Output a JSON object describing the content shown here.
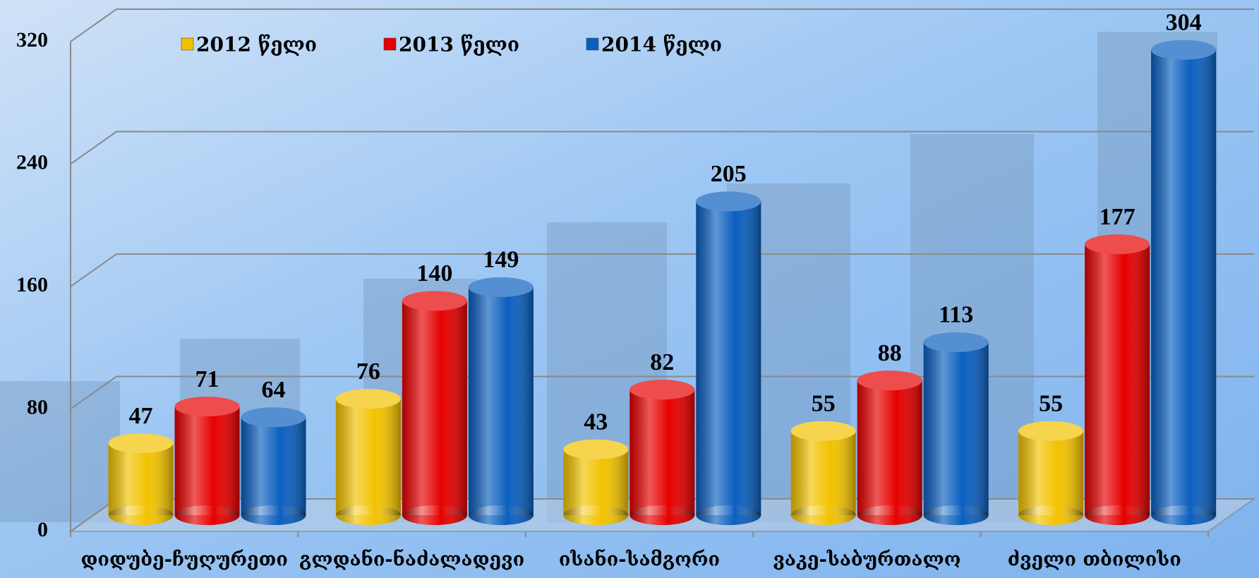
{
  "chart_data": {
    "type": "bar",
    "style": "3d-cylinder",
    "categories": [
      "დიდუბე-ჩუღურეთი",
      "გლდანი-ნაძალადევი",
      "ისანი-სამგორი",
      "ვაკე-საბურთალო",
      "ძველი თბილისი"
    ],
    "series": [
      {
        "name": "2012 წელი",
        "color": "#f2c200",
        "values": [
          47,
          76,
          43,
          55,
          55
        ]
      },
      {
        "name": "2013 წელი",
        "color": "#e60000",
        "values": [
          71,
          140,
          82,
          88,
          177
        ]
      },
      {
        "name": "2014 წელი",
        "color": "#0b5fbf",
        "values": [
          64,
          149,
          205,
          113,
          304
        ]
      }
    ],
    "ylim": [
      0,
      320
    ],
    "yticks": [
      0,
      80,
      160,
      240,
      320
    ],
    "grid": true,
    "legend": "top"
  }
}
